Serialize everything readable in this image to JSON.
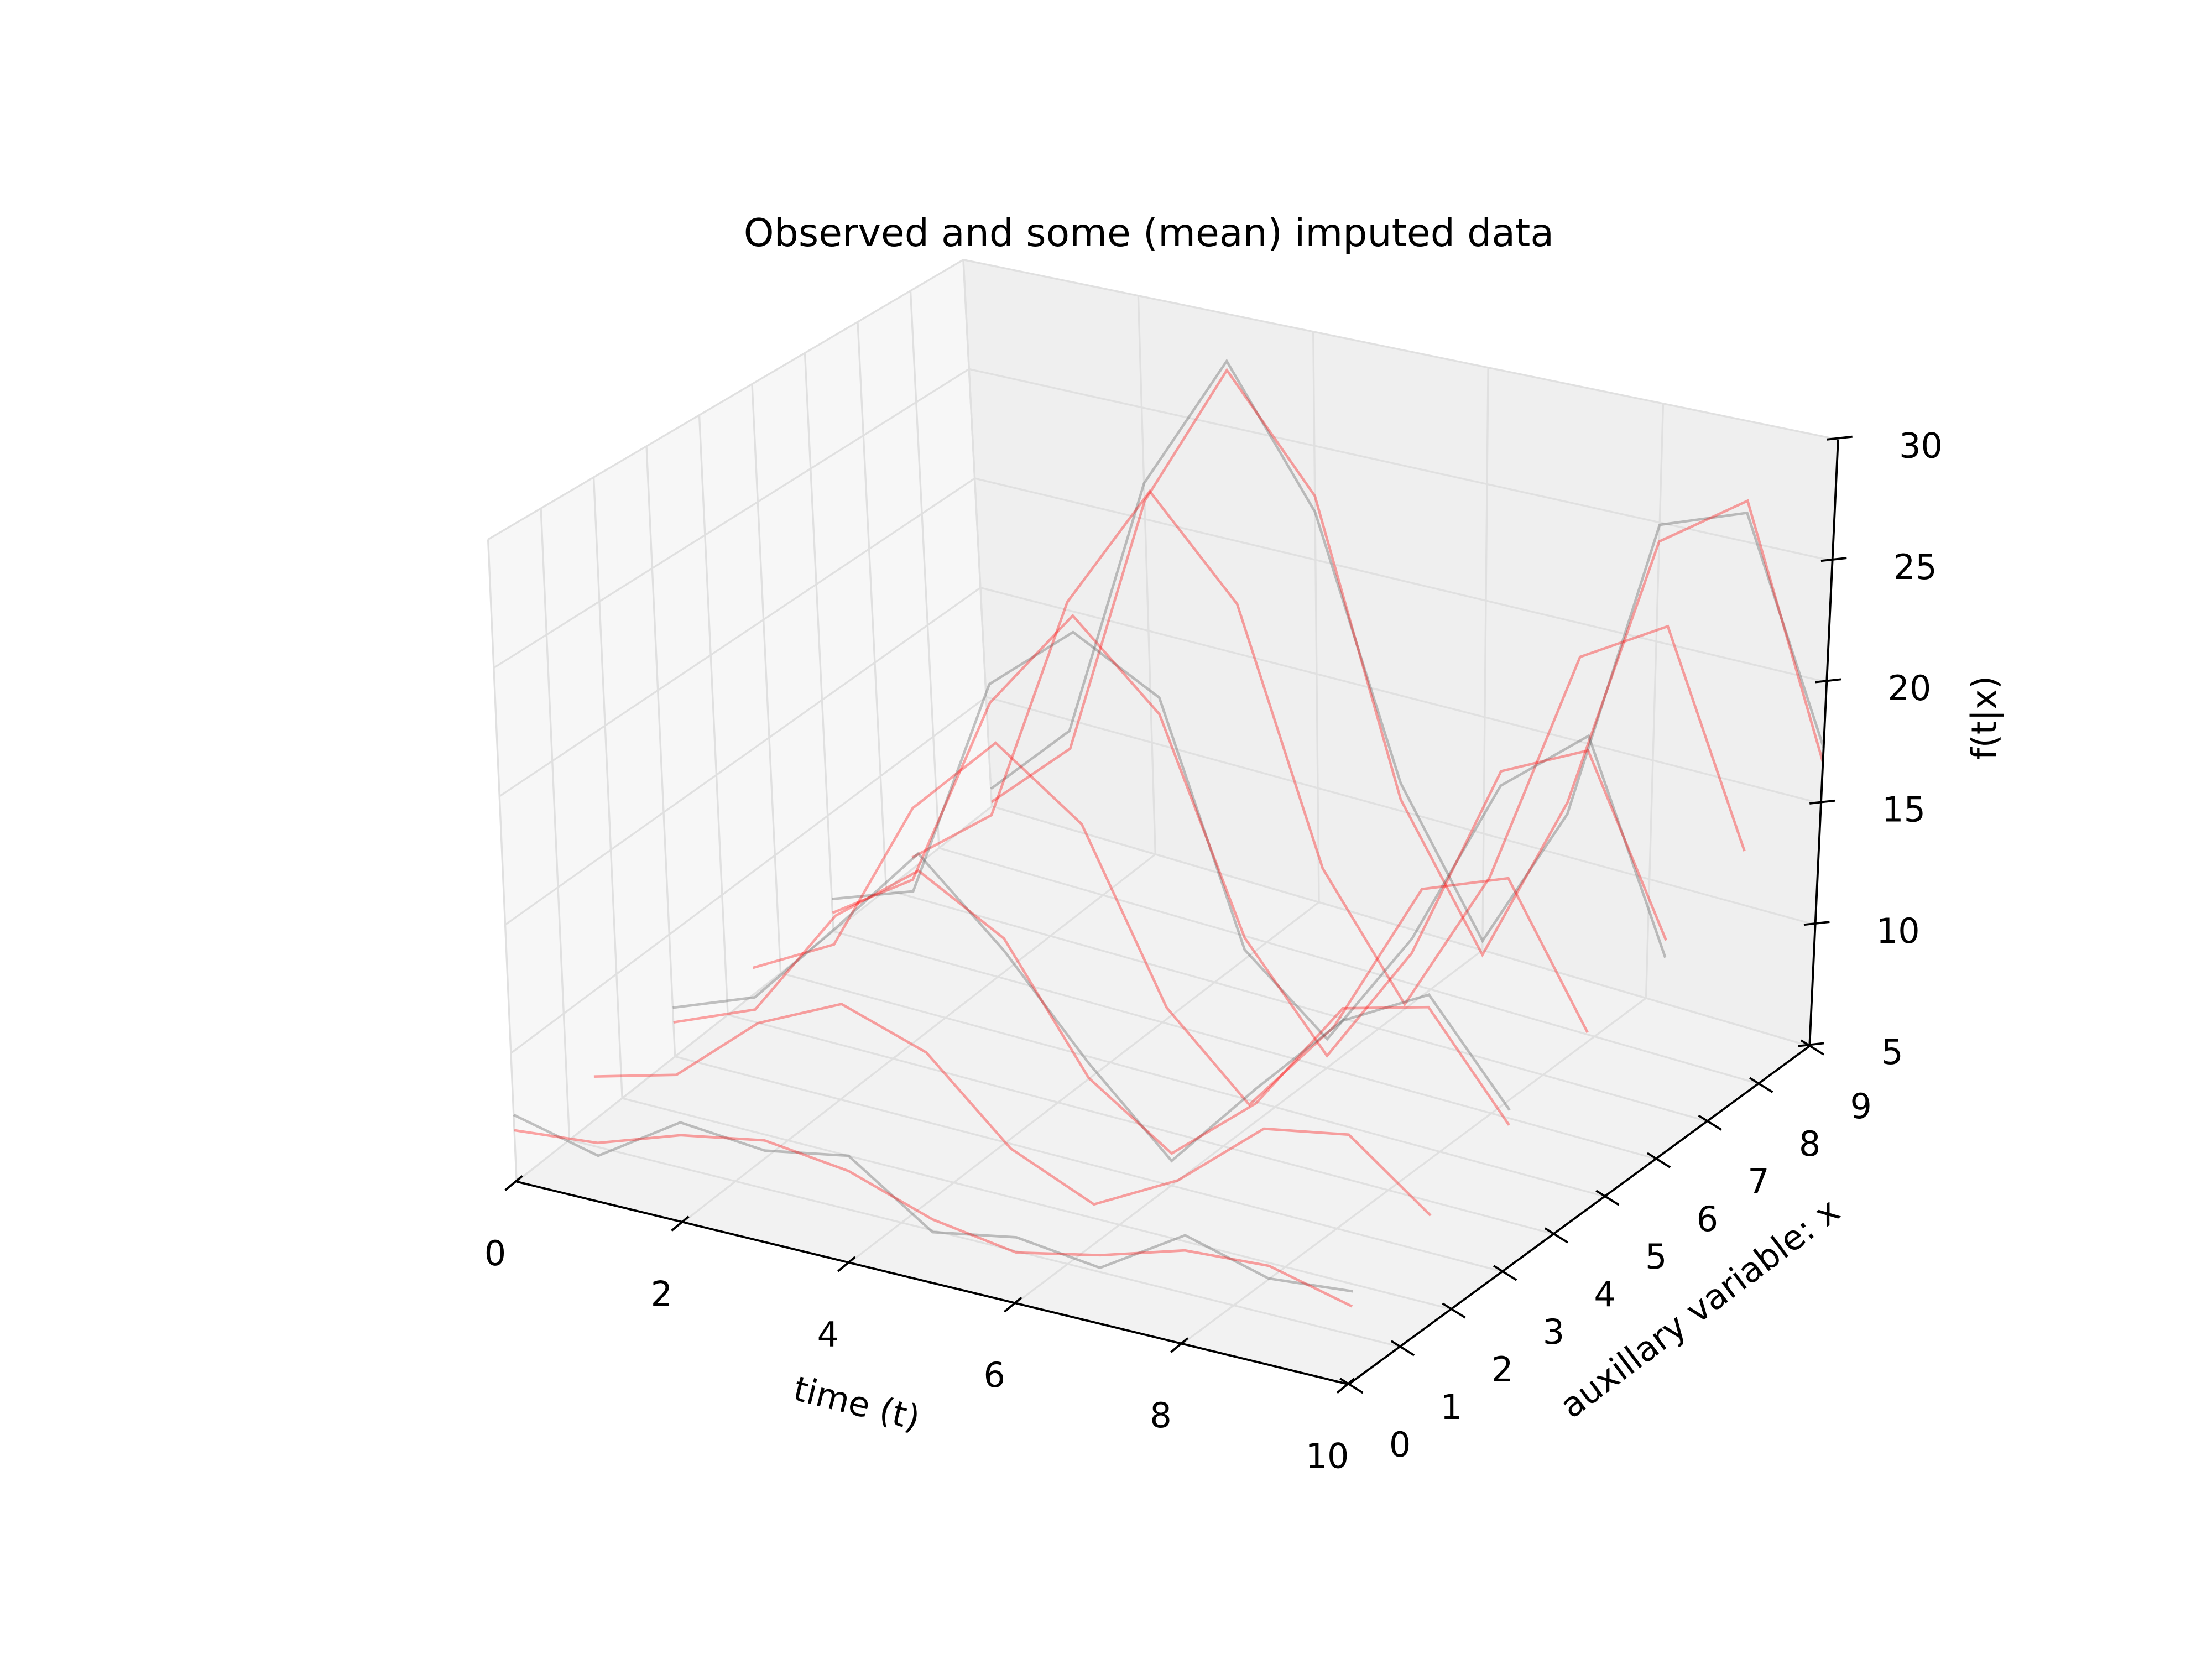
{
  "chart_data": {
    "type": "line3d",
    "title": "Observed and some (mean) imputed data",
    "xlabel": "time (t)",
    "ylabel": "auxillary variable: x",
    "zlabel": "f(t|x)",
    "x": [
      0,
      1,
      2,
      3,
      4,
      5,
      6,
      7,
      8,
      9,
      10
    ],
    "xlim": [
      0,
      10
    ],
    "xticks": [
      0,
      2,
      4,
      6,
      8,
      10
    ],
    "ylim": [
      0,
      9
    ],
    "yticks": [
      0,
      1,
      2,
      3,
      4,
      5,
      6,
      7,
      8,
      9
    ],
    "zlim": [
      5,
      30
    ],
    "zticks": [
      5,
      10,
      15,
      20,
      25,
      30
    ],
    "grid": true,
    "series": [
      {
        "color": "#555555",
        "y": 9,
        "values": [
          5.8,
          9.5,
          21.6,
          27.9,
          22.1,
          11.2,
          5.4,
          11.8,
          24.9,
          26.2,
          17.3
        ]
      },
      {
        "color": "#ff0000",
        "y": 9,
        "values": [
          5.2,
          8.7,
          20.8,
          27.5,
          22.8,
          10.5,
          4.8,
          12.3,
          24.2,
          26.7,
          16.7
        ]
      },
      {
        "color": "#ff0000",
        "y": 7.5,
        "values": [
          5.5,
          8.4,
          18.7,
          24.4,
          20.4,
          10.0,
          5.2,
          11.5,
          21.6,
          23.7,
          15.3
        ]
      },
      {
        "color": "#555555",
        "y": 6,
        "values": [
          6.4,
          7.7,
          17.5,
          20.6,
          18.7,
          9.0,
          6.2,
          11.3,
          18.5,
          21.4,
          13.2
        ]
      },
      {
        "color": "#ff0000",
        "y": 6,
        "values": [
          5.8,
          8.2,
          16.7,
          21.3,
          18.0,
          9.5,
          5.5,
          10.7,
          19.1,
          20.8,
          13.9
        ]
      },
      {
        "color": "#ff0000",
        "y": 4.5,
        "values": [
          6.1,
          8.0,
          14.6,
          18.2,
          15.7,
          9.0,
          5.9,
          10.0,
          16.5,
          17.8,
          12.4
        ]
      },
      {
        "color": "#555555",
        "y": 3,
        "values": [
          7.0,
          8.3,
          12.0,
          15.9,
          12.8,
          9.1,
          6.0,
          9.8,
          13.4,
          15.3,
          11.5
        ]
      },
      {
        "color": "#ff0000",
        "y": 3,
        "values": [
          6.4,
          7.8,
          12.5,
          15.2,
          13.3,
          8.5,
          6.3,
          9.2,
          13.9,
          14.8,
          10.9
        ]
      },
      {
        "color": "#ff0000",
        "y": 1.5,
        "values": [
          6.7,
          7.6,
          10.5,
          12.1,
          11.0,
          8.0,
          6.6,
          8.4,
          11.3,
          11.9,
          9.5
        ]
      },
      {
        "color": "#555555",
        "y": 0,
        "values": [
          7.6,
          6.8,
          8.9,
          8.6,
          9.2,
          7.0,
          7.6,
          7.2,
          9.3,
          8.4,
          8.7
        ]
      },
      {
        "color": "#ff0000",
        "y": 0,
        "values": [
          7.0,
          7.3,
          8.4,
          9.0,
          8.6,
          7.5,
          7.0,
          7.7,
          8.7,
          8.9,
          8.1
        ]
      }
    ]
  }
}
